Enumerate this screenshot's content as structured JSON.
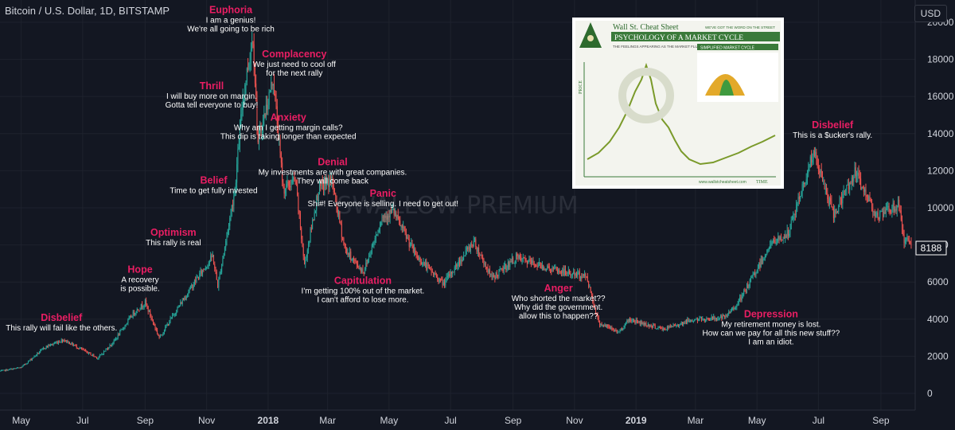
{
  "symbol_title": "Bitcoin / U.S. Dollar, 1D, BITSTAMP",
  "currency": "USD",
  "watermark": "SWALLOW PREMIUM",
  "price_label": "8188",
  "colors": {
    "background": "#131722",
    "up": "#26a69a",
    "down": "#ef5350",
    "phase": "#e91e63",
    "text": "#ffffff",
    "axis_text": "#d1d4dc"
  },
  "inset_image": {
    "logo": "Wall St. Cheat Sheet",
    "tagline": "WE'VE GOT THE WORD ON THE STREET",
    "title": "PSYCHOLOGY OF A MARKET CYCLE",
    "subtitle_left": "THE FEELINGS APPEARING AS THE MARKET FLUCTUATES",
    "subtitle_right": "SIMPLIFIED MARKET CYCLE",
    "axis_price": "PRICE",
    "axis_time": "TIME",
    "website": "www.wallstcheatsheet.com"
  },
  "chart_data": {
    "type": "candlestick",
    "xlabel": "",
    "ylabel": "",
    "x_range": [
      "2017-04-10",
      "2019-10-05"
    ],
    "ylim": [
      -900,
      21200
    ],
    "yticks": [
      0,
      2000,
      4000,
      6000,
      8000,
      10000,
      12000,
      14000,
      16000,
      18000,
      20000
    ],
    "ytick_labels": [
      "0",
      "2000",
      "4000",
      "6000",
      "8000",
      "10000",
      "12000",
      "14000",
      "16000",
      "18000",
      "20000"
    ],
    "xticks": [
      {
        "date": "2017-05-01",
        "label": "May"
      },
      {
        "date": "2017-07-01",
        "label": "Jul"
      },
      {
        "date": "2017-09-01",
        "label": "Sep"
      },
      {
        "date": "2017-11-01",
        "label": "Nov"
      },
      {
        "date": "2018-01-01",
        "label": "2018"
      },
      {
        "date": "2018-03-01",
        "label": "Mar"
      },
      {
        "date": "2018-05-01",
        "label": "May"
      },
      {
        "date": "2018-07-01",
        "label": "Jul"
      },
      {
        "date": "2018-09-01",
        "label": "Sep"
      },
      {
        "date": "2018-11-01",
        "label": "Nov"
      },
      {
        "date": "2019-01-01",
        "label": "2019"
      },
      {
        "date": "2019-03-01",
        "label": "Mar"
      },
      {
        "date": "2019-05-01",
        "label": "May"
      },
      {
        "date": "2019-07-01",
        "label": "Jul"
      },
      {
        "date": "2019-09-01",
        "label": "Sep"
      }
    ],
    "price_path": [
      [
        "2017-04-10",
        1200
      ],
      [
        "2017-05-01",
        1400
      ],
      [
        "2017-05-25",
        2500
      ],
      [
        "2017-06-12",
        2900
      ],
      [
        "2017-07-16",
        1900
      ],
      [
        "2017-08-01",
        2800
      ],
      [
        "2017-08-20",
        4300
      ],
      [
        "2017-09-01",
        4900
      ],
      [
        "2017-09-15",
        3000
      ],
      [
        "2017-10-01",
        4400
      ],
      [
        "2017-10-20",
        6000
      ],
      [
        "2017-11-07",
        7400
      ],
      [
        "2017-11-12",
        5800
      ],
      [
        "2017-11-20",
        8200
      ],
      [
        "2017-11-29",
        11000
      ],
      [
        "2017-12-07",
        16000
      ],
      [
        "2017-12-17",
        19300
      ],
      [
        "2017-12-22",
        13500
      ],
      [
        "2018-01-06",
        17000
      ],
      [
        "2018-01-16",
        11000
      ],
      [
        "2018-01-28",
        11500
      ],
      [
        "2018-02-06",
        6900
      ],
      [
        "2018-02-20",
        11000
      ],
      [
        "2018-03-05",
        11500
      ],
      [
        "2018-03-18",
        7800
      ],
      [
        "2018-04-01",
        6800
      ],
      [
        "2018-04-06",
        6600
      ],
      [
        "2018-04-24",
        9500
      ],
      [
        "2018-05-05",
        9800
      ],
      [
        "2018-05-28",
        7400
      ],
      [
        "2018-06-24",
        5900
      ],
      [
        "2018-07-24",
        8200
      ],
      [
        "2018-08-11",
        6200
      ],
      [
        "2018-09-04",
        7300
      ],
      [
        "2018-10-15",
        6600
      ],
      [
        "2018-11-13",
        6300
      ],
      [
        "2018-11-25",
        3800
      ],
      [
        "2018-12-15",
        3300
      ],
      [
        "2018-12-25",
        4000
      ],
      [
        "2019-01-28",
        3450
      ],
      [
        "2019-02-24",
        3950
      ],
      [
        "2019-03-31",
        4100
      ],
      [
        "2019-04-15",
        5100
      ],
      [
        "2019-05-14",
        8000
      ],
      [
        "2019-06-01",
        8600
      ],
      [
        "2019-06-26",
        13000
      ],
      [
        "2019-07-16",
        9600
      ],
      [
        "2019-08-06",
        11900
      ],
      [
        "2019-08-29",
        9500
      ],
      [
        "2019-09-19",
        10200
      ],
      [
        "2019-09-24",
        8200
      ],
      [
        "2019-10-01",
        8188
      ]
    ],
    "last_price": 8188,
    "annotations": [
      {
        "phase": "Euphoria",
        "text": [
          "I am a genius!",
          "We're all going to be rich"
        ],
        "date": "2017-11-25",
        "price": 20500
      },
      {
        "phase": "Complacency",
        "text": [
          "We just need to cool off",
          "for the next rally"
        ],
        "date": "2018-01-27",
        "price": 18100
      },
      {
        "phase": "Thrill",
        "text": [
          "I will buy more on margin.",
          "Gotta tell everyone to buy!"
        ],
        "date": "2017-11-06",
        "price": 16400
      },
      {
        "phase": "Anxiety",
        "text": [
          "Why am I getting margin calls?",
          "This dip is taking longer than expected"
        ],
        "date": "2018-01-21",
        "price": 14700
      },
      {
        "phase": "Denial",
        "text": [
          "My investments are with great companies.",
          "They will come back"
        ],
        "date": "2018-03-06",
        "price": 12300
      },
      {
        "phase": "Belief",
        "text": [
          "Time to get fully invested"
        ],
        "date": "2017-11-08",
        "price": 11300
      },
      {
        "phase": "Panic",
        "text": [
          "Shi#! Everyone is selling. I need to get out!"
        ],
        "date": "2018-04-25",
        "price": 10600
      },
      {
        "phase": "Optimism",
        "text": [
          "This rally is real"
        ],
        "date": "2017-09-29",
        "price": 8500
      },
      {
        "phase": "Hope",
        "text": [
          "A recovery",
          "is possible."
        ],
        "date": "2017-08-27",
        "price": 6500
      },
      {
        "phase": "Capitulation",
        "text": [
          "I'm getting 100% out of the market.",
          "I can't afford to lose more."
        ],
        "date": "2018-04-05",
        "price": 5900
      },
      {
        "phase": "Anger",
        "text": [
          "Who shorted the market??",
          "Why did the government.",
          "allow this to happen??"
        ],
        "date": "2018-10-16",
        "price": 5500
      },
      {
        "phase": "Disbelief",
        "text": [
          "This rally will fail like the others."
        ],
        "date": "2017-06-10",
        "price": 3900
      },
      {
        "phase": "Depression",
        "text": [
          "My retirement money is lost.",
          "How can we pay for all this new stuff??",
          "I am an idiot."
        ],
        "date": "2019-05-15",
        "price": 4100
      },
      {
        "phase": "Disbelief",
        "text": [
          "This is a $ucker's rally."
        ],
        "date": "2019-07-15",
        "price": 14300
      }
    ]
  }
}
